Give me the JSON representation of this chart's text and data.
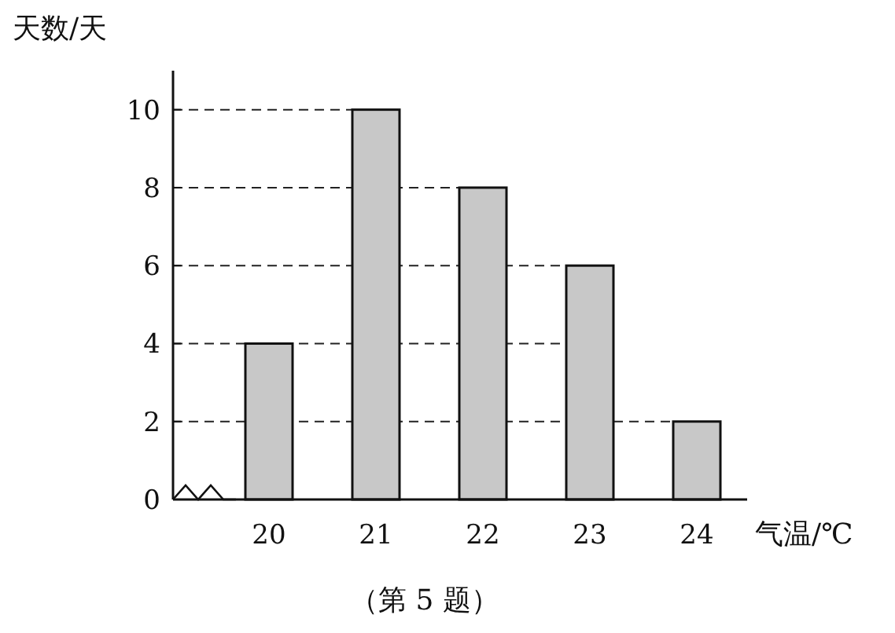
{
  "chart_data": {
    "type": "bar",
    "xlabel": "气温/℃",
    "ylabel": "天数/天",
    "categories": [
      "20",
      "21",
      "22",
      "23",
      "24"
    ],
    "values": [
      4,
      10,
      8,
      6,
      2
    ],
    "color": "#c8c8c8",
    "ylim": [
      0,
      11
    ],
    "yticks": [
      0,
      2,
      4,
      6,
      8,
      10
    ],
    "ref_lines": [
      {
        "axis": "y",
        "value": 2,
        "line_style": "dashed",
        "color": "#222222"
      },
      {
        "axis": "y",
        "value": 4,
        "line_style": "dashed",
        "color": "#222222"
      },
      {
        "axis": "y",
        "value": 6,
        "line_style": "dashed",
        "color": "#222222"
      },
      {
        "axis": "y",
        "value": 8,
        "line_style": "dashed",
        "color": "#222222"
      },
      {
        "axis": "y",
        "value": 10,
        "line_style": "dashed",
        "color": "#222222"
      }
    ],
    "annotations": [
      "（第 5 题）"
    ]
  }
}
